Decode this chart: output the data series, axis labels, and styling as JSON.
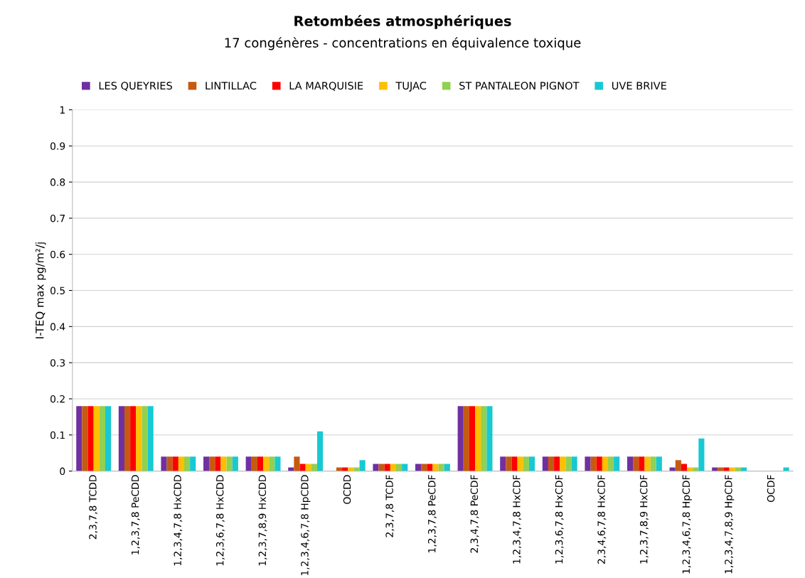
{
  "chart_data": {
    "type": "bar",
    "title": "Retombées atmosphériques",
    "subtitle": "17 congénères - concentrations en équivalence toxique",
    "ylabel": "I-TEQ max pg/m²/j",
    "categories": [
      "2,3,7,8 TCDD",
      "1,2,3,7,8 PeCDD",
      "1,2,3,4,7,8 HxCDD",
      "1,2,3,6,7,8 HxCDD",
      "1,2,3,7,8,9 HxCDD",
      "1,2,3,4,6,7,8 HpCDD",
      "OCDD",
      "2,3,7,8 TCDF",
      "1,2,3,7,8 PeCDF",
      "2,3,4,7,8 PeCDF",
      "1,2,3,4,7,8 HxCDF",
      "1,2,3,6,7,8 HxCDF",
      "2,3,4,6,7,8 HxCDF",
      "1,2,3,7,8,9 HxCDF",
      "1,2,3,4,6,7,8 HpCDF",
      "1,2,3,4,7,8,9 HpCDF",
      "OCDF"
    ],
    "series": [
      {
        "name": "LES QUEYRIES",
        "color": "#7030a0",
        "values": [
          0.18,
          0.18,
          0.04,
          0.04,
          0.04,
          0.01,
          0,
          0.02,
          0.02,
          0.18,
          0.04,
          0.04,
          0.04,
          0.04,
          0.01,
          0.01,
          0
        ]
      },
      {
        "name": "LINTILLAC",
        "color": "#c55a11",
        "values": [
          0.18,
          0.18,
          0.04,
          0.04,
          0.04,
          0.04,
          0.01,
          0.02,
          0.02,
          0.18,
          0.04,
          0.04,
          0.04,
          0.04,
          0.03,
          0.01,
          0
        ]
      },
      {
        "name": "LA MARQUISIE",
        "color": "#ff0000",
        "values": [
          0.18,
          0.18,
          0.04,
          0.04,
          0.04,
          0.02,
          0.01,
          0.02,
          0.02,
          0.18,
          0.04,
          0.04,
          0.04,
          0.04,
          0.02,
          0.01,
          0
        ]
      },
      {
        "name": "TUJAC",
        "color": "#ffc000",
        "values": [
          0.18,
          0.18,
          0.04,
          0.04,
          0.04,
          0.02,
          0.01,
          0.02,
          0.02,
          0.18,
          0.04,
          0.04,
          0.04,
          0.04,
          0.01,
          0.01,
          0
        ]
      },
      {
        "name": "ST PANTALEON PIGNOT",
        "color": "#92d050",
        "values": [
          0.18,
          0.18,
          0.04,
          0.04,
          0.04,
          0.02,
          0.01,
          0.02,
          0.02,
          0.18,
          0.04,
          0.04,
          0.04,
          0.04,
          0.01,
          0.01,
          0
        ]
      },
      {
        "name": "UVE BRIVE",
        "color": "#17c9d3",
        "values": [
          0.18,
          0.18,
          0.04,
          0.04,
          0.04,
          0.11,
          0.03,
          0.02,
          0.02,
          0.18,
          0.04,
          0.04,
          0.04,
          0.04,
          0.09,
          0.01,
          0.01
        ]
      }
    ],
    "ylim": [
      0,
      1
    ],
    "yticks": [
      0,
      0.1,
      0.2,
      0.3,
      0.4,
      0.5,
      0.6,
      0.7,
      0.8,
      0.9,
      1
    ],
    "grid": "y",
    "legend": "top"
  }
}
